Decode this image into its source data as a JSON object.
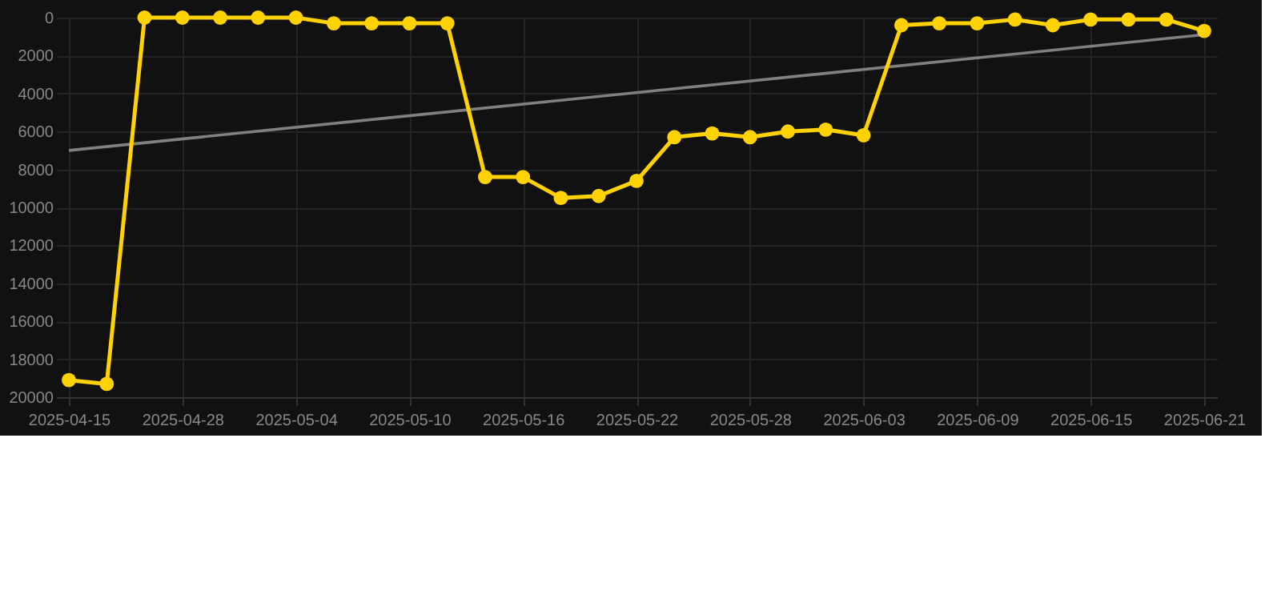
{
  "chart_data": {
    "type": "line",
    "categories": [
      "2025-04-15",
      null,
      null,
      "2025-04-28",
      null,
      null,
      "2025-05-04",
      null,
      null,
      "2025-05-10",
      null,
      null,
      "2025-05-16",
      null,
      null,
      "2025-05-22",
      null,
      null,
      "2025-05-28",
      null,
      null,
      "2025-06-03",
      null,
      null,
      "2025-06-09",
      null,
      null,
      "2025-06-15",
      null,
      null,
      "2025-06-21"
    ],
    "series": [
      {
        "color": "#ffd200",
        "marker": "circle",
        "values": [
          19100,
          19300,
          0,
          0,
          0,
          0,
          0,
          300,
          300,
          300,
          300,
          8400,
          8400,
          9500,
          9400,
          8600,
          6300,
          6100,
          6300,
          6000,
          5900,
          6200,
          400,
          300,
          300,
          100,
          400,
          100,
          100,
          100,
          700
        ]
      },
      {
        "color": "#808080",
        "marker": "none",
        "values": [
          7000,
          null,
          null,
          null,
          null,
          null,
          null,
          null,
          null,
          null,
          null,
          null,
          null,
          null,
          null,
          null,
          null,
          null,
          null,
          null,
          null,
          null,
          null,
          null,
          null,
          null,
          null,
          null,
          null,
          null,
          900
        ]
      }
    ],
    "ylim": [
      20000,
      0
    ],
    "yticks": [
      0,
      2000,
      4000,
      6000,
      8000,
      10000,
      12000,
      14000,
      16000,
      18000,
      20000
    ],
    "grid": true
  }
}
